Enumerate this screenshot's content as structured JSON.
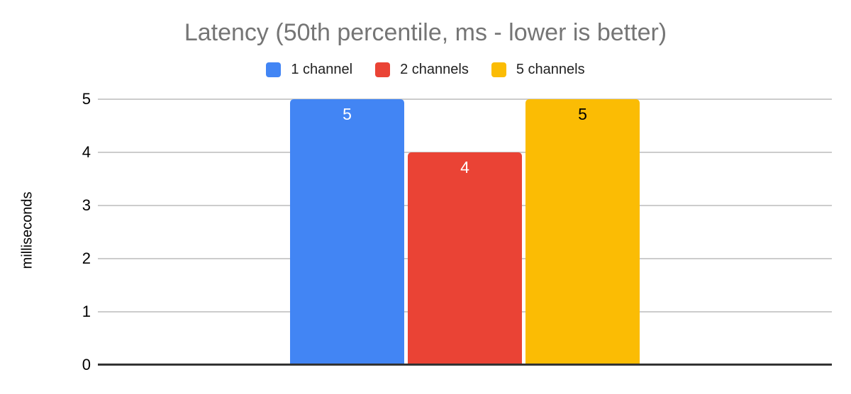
{
  "chart_data": {
    "type": "bar",
    "title": "Latency (50th percentile, ms - lower is better)",
    "categories": [
      ""
    ],
    "series": [
      {
        "name": "1 channel",
        "values": [
          5
        ],
        "color": "#4285F4",
        "label_color": "#ffffff"
      },
      {
        "name": "2 channels",
        "values": [
          4
        ],
        "color": "#EA4335",
        "label_color": "#ffffff"
      },
      {
        "name": "5 channels",
        "values": [
          5
        ],
        "color": "#FBBC04",
        "label_color": "#000000"
      }
    ],
    "bar_labels": [
      5,
      4,
      5
    ],
    "xlabel": "",
    "ylabel": "milliseconds",
    "ylim": [
      0,
      5
    ],
    "yticks": [
      0,
      1,
      2,
      3,
      4,
      5
    ],
    "grid": true,
    "legend_position": "top"
  },
  "colors": {
    "background": "#ffffff",
    "title_text": "#757575",
    "gridline": "#cccccc",
    "baseline": "#333333",
    "tick_label": "#000000",
    "legend_text": "#212121"
  }
}
